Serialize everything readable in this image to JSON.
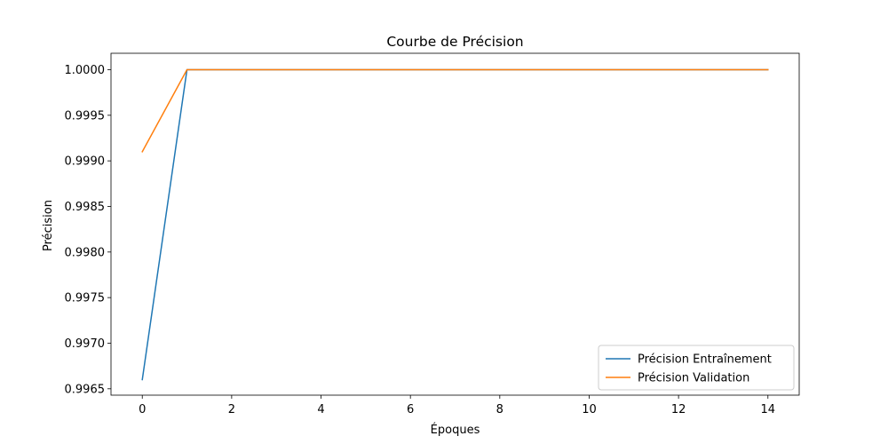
{
  "chart_data": {
    "type": "line",
    "title": "Courbe de Précision",
    "xlabel": "Époques",
    "ylabel": "Précision",
    "x": [
      0,
      1,
      2,
      3,
      4,
      5,
      6,
      7,
      8,
      9,
      10,
      11,
      12,
      13,
      14
    ],
    "xlim": [
      -0.7,
      14.7
    ],
    "ylim": [
      0.99643,
      1.00018
    ],
    "xticks": [
      0,
      2,
      4,
      6,
      8,
      10,
      12,
      14
    ],
    "xtick_labels": [
      "0",
      "2",
      "4",
      "6",
      "8",
      "10",
      "12",
      "14"
    ],
    "yticks": [
      0.9965,
      0.997,
      0.9975,
      0.998,
      0.9985,
      0.999,
      0.9995,
      1.0
    ],
    "ytick_labels": [
      "0.9965",
      "0.9970",
      "0.9975",
      "0.9980",
      "0.9985",
      "0.9990",
      "0.9995",
      "1.0000"
    ],
    "grid": false,
    "legend_position": "bottom-right",
    "series": [
      {
        "name": "Précision Entraînement",
        "color": "#1f77b4",
        "values": [
          0.9966,
          1.0,
          1.0,
          1.0,
          1.0,
          1.0,
          1.0,
          1.0,
          1.0,
          1.0,
          1.0,
          1.0,
          1.0,
          1.0,
          1.0
        ]
      },
      {
        "name": "Précision Validation",
        "color": "#ff7f0e",
        "values": [
          0.9991,
          1.0,
          1.0,
          1.0,
          1.0,
          1.0,
          1.0,
          1.0,
          1.0,
          1.0,
          1.0,
          1.0,
          1.0,
          1.0,
          1.0
        ]
      }
    ]
  }
}
